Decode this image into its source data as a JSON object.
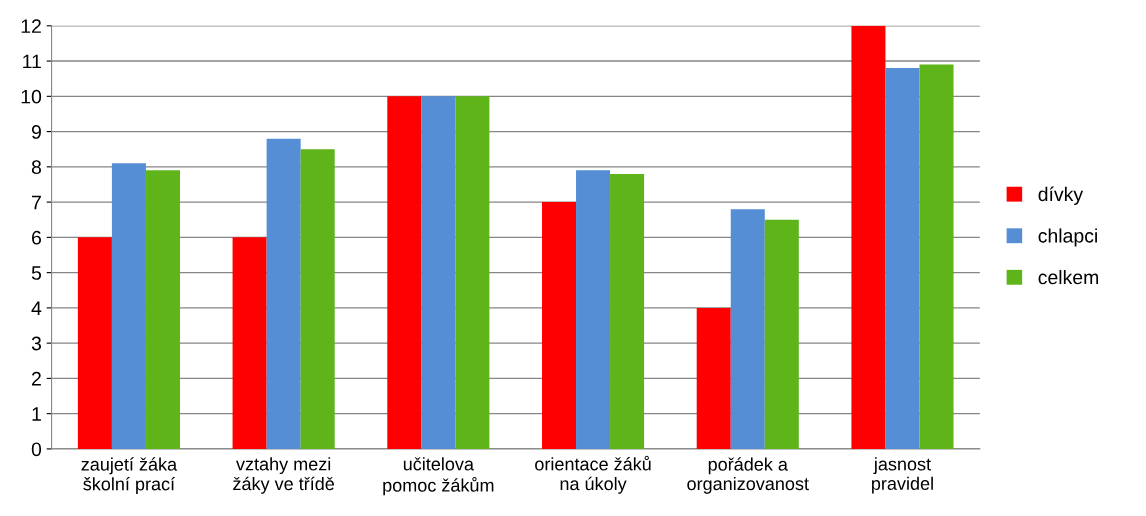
{
  "chart_data": {
    "type": "bar",
    "categories": [
      "zaujetí žáka\nškolní prací",
      "vztahy mezi\nžáky ve třídě",
      "učitelova\npomoc žákům",
      "orientace žáků\nna úkoly",
      "pořádek a\norganizovanost",
      "jasnost\npravidel"
    ],
    "series": [
      {
        "name": "dívky",
        "color": "#ff0000",
        "values": [
          6,
          6,
          10,
          7,
          4,
          12
        ]
      },
      {
        "name": "chlapci",
        "color": "#558ed5",
        "values": [
          8.1,
          8.8,
          10,
          7.9,
          6.8,
          10.8
        ]
      },
      {
        "name": "celkem",
        "color": "#5eb419",
        "values": [
          7.9,
          8.5,
          10,
          7.8,
          6.5,
          10.9
        ]
      }
    ],
    "ylim": [
      0,
      12
    ],
    "yticks": [
      0,
      1,
      2,
      3,
      4,
      5,
      6,
      7,
      8,
      9,
      10,
      11,
      12
    ],
    "grid": "y",
    "legend": "right"
  }
}
